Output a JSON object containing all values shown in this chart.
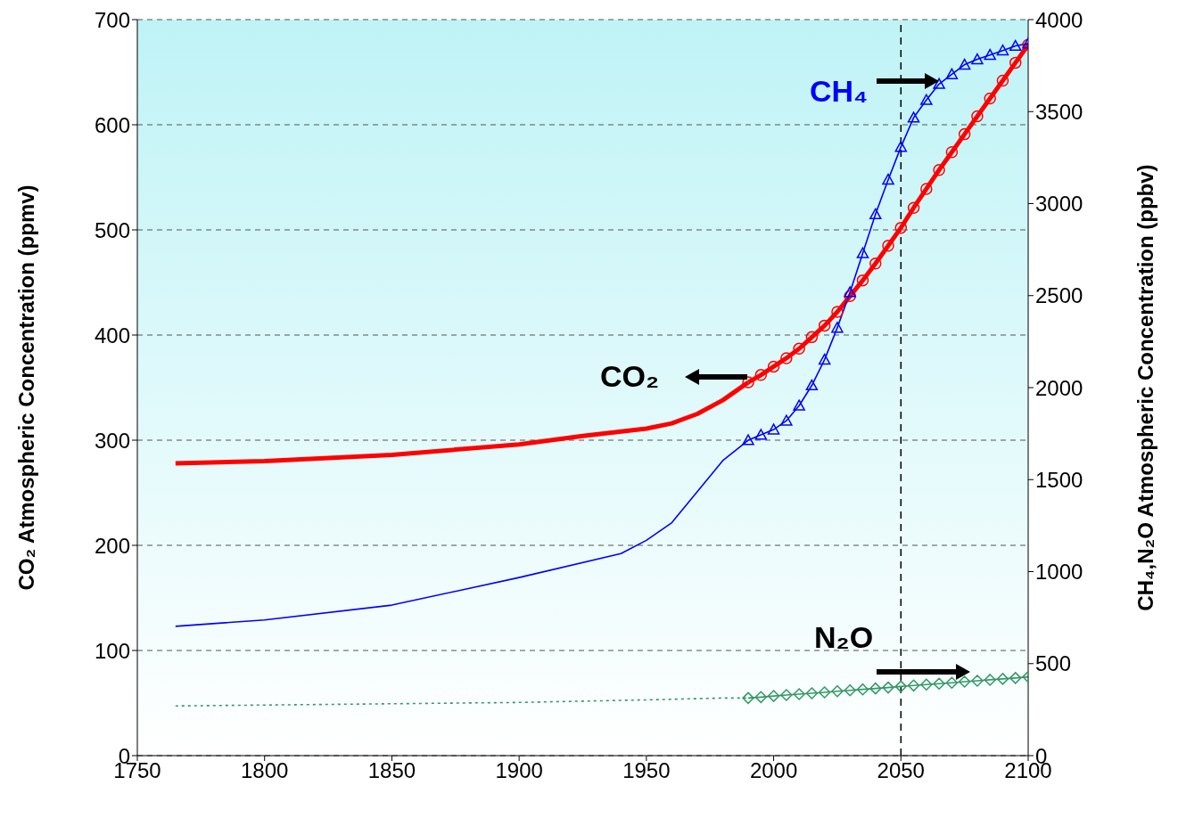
{
  "chart_data": {
    "type": "line",
    "ylabel": "CO₂ Atmospheric Concentration (ppmv)",
    "y2label": "CH₄,N₂O Atmospheric Concentration (ppbv)",
    "xlim": [
      1750,
      2100
    ],
    "xticks": [
      1750,
      1800,
      1850,
      1900,
      1950,
      2000,
      2050,
      2100
    ],
    "ylim": [
      0,
      700
    ],
    "yticks": [
      0,
      100,
      200,
      300,
      400,
      500,
      600,
      700
    ],
    "y2lim": [
      0,
      4000
    ],
    "y2ticks": [
      0,
      500,
      1000,
      1500,
      2000,
      2500,
      3000,
      3500,
      4000
    ],
    "grid": "y",
    "ref_lines": [
      {
        "axis": "x",
        "value": 2050,
        "color": "#000000",
        "line_style": "dashed"
      }
    ],
    "series": [
      {
        "name": "CO₂",
        "color": "#ff0000",
        "axis": "y",
        "marker": "none",
        "line_style": "solid",
        "x": [
          1765,
          1800,
          1850,
          1900,
          1925,
          1950,
          1960,
          1970,
          1980,
          1990
        ],
        "values": [
          278,
          280,
          286,
          296,
          304,
          311,
          316,
          325,
          338,
          355
        ]
      },
      {
        "color": "#ff0000",
        "axis": "y",
        "marker": "circle",
        "line_style": "solid",
        "x": [
          1990,
          1995,
          2000,
          2005,
          2010,
          2015,
          2020,
          2025,
          2030,
          2035,
          2040,
          2045,
          2050,
          2055,
          2060,
          2065,
          2070,
          2075,
          2080,
          2085,
          2090,
          2095,
          2100
        ],
        "values": [
          355,
          362,
          370,
          378,
          387,
          398,
          409,
          422,
          437,
          452,
          468,
          485,
          502,
          521,
          539,
          557,
          574,
          591,
          608,
          625,
          642,
          659,
          676
        ]
      },
      {
        "name": "CH₄",
        "color": "#0000ff",
        "axis": "y2",
        "marker": "none",
        "line_style": "solid",
        "x": [
          1765,
          1800,
          1850,
          1900,
          1940,
          1950,
          1960,
          1970,
          1980,
          1990
        ],
        "values": [
          703,
          737,
          818,
          968,
          1098,
          1170,
          1266,
          1435,
          1603,
          1714
        ]
      },
      {
        "color": "#0000ff",
        "axis": "y2",
        "marker": "triangle",
        "line_style": "solid",
        "x": [
          1990,
          1995,
          2000,
          2005,
          2010,
          2015,
          2020,
          2025,
          2030,
          2035,
          2040,
          2045,
          2050,
          2055,
          2060,
          2065,
          2070,
          2075,
          2080,
          2085,
          2090,
          2095,
          2100
        ],
        "values": [
          1714,
          1743,
          1772,
          1820,
          1902,
          2012,
          2152,
          2325,
          2518,
          2730,
          2942,
          3130,
          3308,
          3467,
          3563,
          3650,
          3703,
          3755,
          3784,
          3808,
          3832,
          3857,
          3870
        ]
      },
      {
        "name": "N₂O",
        "color": "#339966",
        "axis": "y2",
        "marker": "none",
        "line_style": "dotted",
        "x": [
          1765,
          1900,
          1950,
          1980,
          1990
        ],
        "values": [
          270,
          289,
          303,
          313,
          313
        ]
      },
      {
        "color": "#339966",
        "axis": "y2",
        "marker": "diamond",
        "line_style": "solid",
        "x": [
          1990,
          1995,
          2000,
          2005,
          2010,
          2015,
          2020,
          2025,
          2030,
          2035,
          2040,
          2045,
          2050,
          2055,
          2060,
          2065,
          2070,
          2075,
          2080,
          2085,
          2090,
          2095,
          2100
        ],
        "values": [
          313,
          318,
          324,
          329,
          334,
          339,
          344,
          350,
          355,
          360,
          365,
          370,
          376,
          381,
          386,
          391,
          396,
          402,
          407,
          412,
          417,
          422,
          428
        ]
      }
    ]
  }
}
